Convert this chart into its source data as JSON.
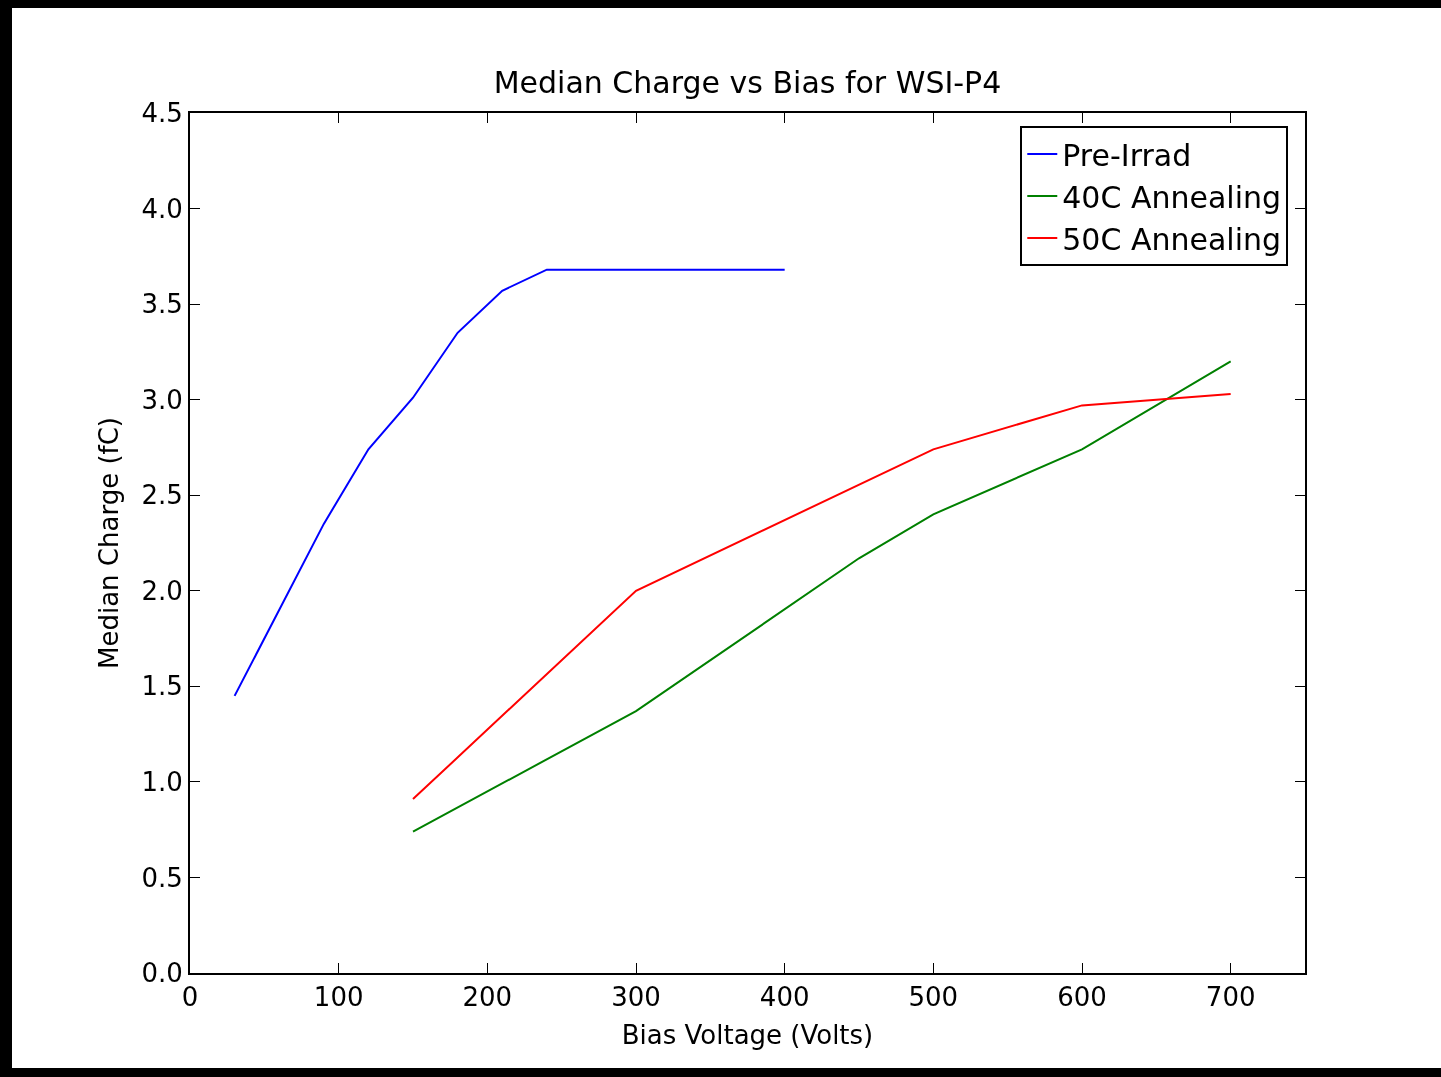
{
  "chart_data": {
    "type": "line",
    "title": "Median Charge vs Bias for WSI-P4",
    "xlabel": "Bias Voltage (Volts)",
    "ylabel": "Median Charge (fC)",
    "xlim": [
      0,
      750
    ],
    "xticks": [
      0,
      100,
      200,
      300,
      400,
      500,
      600,
      700
    ],
    "ylim": [
      0,
      4.5
    ],
    "yticks": [
      {
        "value": 0,
        "label": "0.0"
      },
      {
        "value": 0.5,
        "label": "0.5"
      },
      {
        "value": 1,
        "label": "1.0"
      },
      {
        "value": 1.5,
        "label": "1.5"
      },
      {
        "value": 2,
        "label": "2.0"
      },
      {
        "value": 2.5,
        "label": "2.5"
      },
      {
        "value": 3,
        "label": "3.0"
      },
      {
        "value": 3.5,
        "label": "3.5"
      },
      {
        "value": 4,
        "label": "4.0"
      },
      {
        "value": 4.5,
        "label": "4.5"
      }
    ],
    "grid": false,
    "legend": "top right",
    "marker": "none",
    "line_style": "solid",
    "series": [
      {
        "name": "Pre-Irrad",
        "color": "#0000ff",
        "x": [
          30,
          90,
          120,
          150,
          180,
          210,
          240,
          300,
          400
        ],
        "values": [
          1.45,
          2.35,
          2.74,
          3.01,
          3.35,
          3.57,
          3.68,
          3.68,
          3.68
        ]
      },
      {
        "name": "40C Annealing",
        "color": "#008000",
        "x": [
          150,
          300,
          450,
          500,
          600,
          700
        ],
        "values": [
          0.74,
          1.37,
          2.17,
          2.4,
          2.74,
          3.2
        ]
      },
      {
        "name": "50C Annealing",
        "color": "#ff0000",
        "x": [
          150,
          300,
          500,
          600,
          700
        ],
        "values": [
          0.91,
          2.0,
          2.74,
          2.97,
          3.03
        ]
      }
    ]
  }
}
